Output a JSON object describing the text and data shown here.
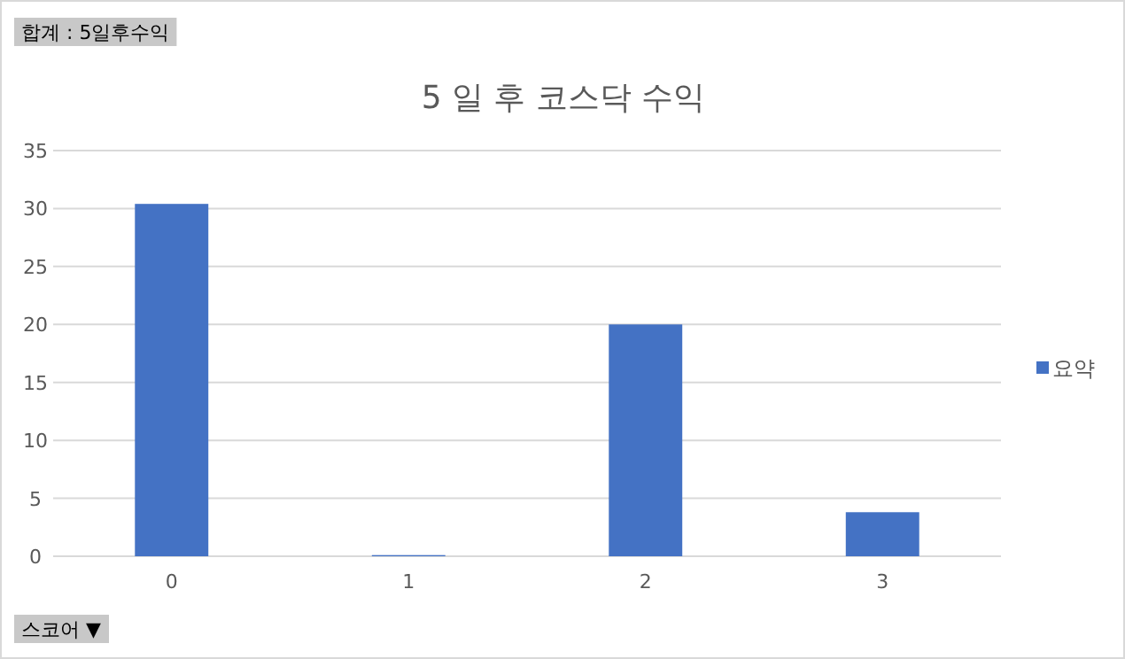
{
  "chart_data": {
    "type": "bar",
    "title": "5 일 후 코스닥 수익",
    "annotations": [
      "합계 : 5일후수익",
      "스코어 ▼"
    ],
    "categories": [
      "0",
      "1",
      "2",
      "3"
    ],
    "series": [
      {
        "name": "요약",
        "color": "#4472c4",
        "values": [
          30.4,
          0.1,
          20.0,
          3.8
        ]
      }
    ],
    "ylim": [
      0,
      35
    ],
    "yticks": [
      0,
      5,
      10,
      15,
      20,
      25,
      30,
      35
    ],
    "grid": "y",
    "legend": "right"
  }
}
